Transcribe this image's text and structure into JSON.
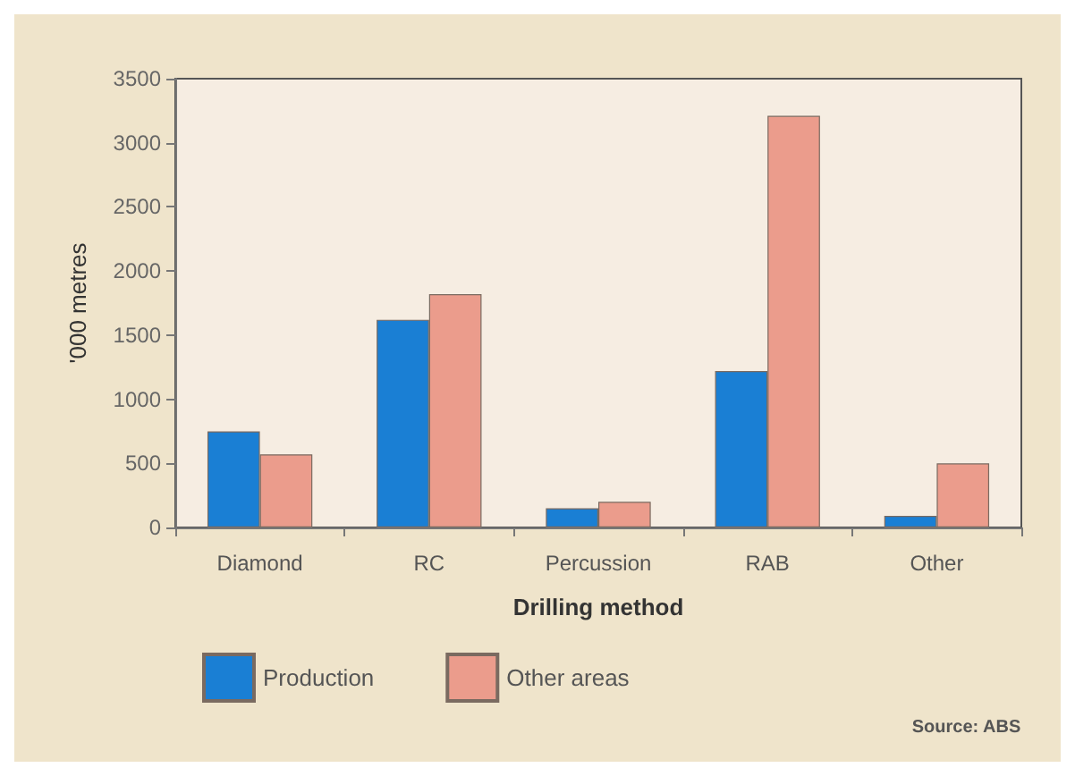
{
  "chart_data": {
    "type": "bar",
    "xlabel": "Drilling method",
    "ylabel": "'000 metres",
    "categories": [
      "Diamond",
      "RC",
      "Percussion",
      "RAB",
      "Other"
    ],
    "series": [
      {
        "name": "Production",
        "color": "#1a7fd4",
        "values": [
          750,
          1620,
          150,
          1220,
          90
        ]
      },
      {
        "name": "Other areas",
        "color": "#eb9c8c",
        "values": [
          570,
          1820,
          200,
          3210,
          500
        ]
      }
    ],
    "ylim": [
      0,
      3500
    ],
    "yticks": [
      0,
      500,
      1000,
      1500,
      2000,
      2500,
      3000,
      3500
    ],
    "grid": false,
    "legend": "bottom left",
    "annotations": [
      "Source: ABS"
    ]
  }
}
